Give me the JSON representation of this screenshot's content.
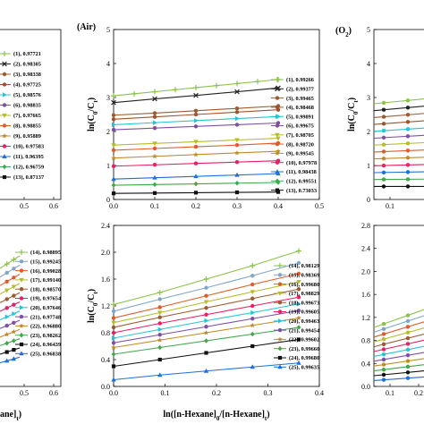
{
  "chart_data": [
    {
      "id": "air-top",
      "type": "line",
      "gas_label": "(Air)",
      "ylabel": "ln(C0/Ct)",
      "xlim": [
        0.0,
        0.5
      ],
      "ylim": [
        0,
        5
      ],
      "x_ticks": [
        "0.0",
        "0.1",
        "0.2",
        "0.3",
        "0.4",
        "0.5"
      ],
      "y_ticks": [
        "0",
        "1",
        "2",
        "3",
        "4",
        "5"
      ],
      "series": [
        {
          "name": "(1), 0.99266",
          "color": "#8bc34a",
          "marker": "plus",
          "x": [
            0,
            0.05,
            0.1,
            0.15,
            0.2,
            0.25,
            0.3,
            0.35,
            0.4
          ],
          "y": [
            3.05,
            3.11,
            3.17,
            3.23,
            3.29,
            3.35,
            3.41,
            3.47,
            3.53
          ]
        },
        {
          "name": "(2), 0.99377",
          "color": "#222222",
          "marker": "cross",
          "x": [
            0,
            0.1,
            0.2,
            0.3,
            0.4
          ],
          "y": [
            2.85,
            2.96,
            3.06,
            3.17,
            3.28
          ]
        },
        {
          "name": "(3), 0.99465",
          "color": "#9c5b2f",
          "marker": "circle",
          "x": [
            0,
            0.1,
            0.2,
            0.3,
            0.4
          ],
          "y": [
            2.48,
            2.54,
            2.61,
            2.68,
            2.75
          ]
        },
        {
          "name": "(4), 0.98468",
          "color": "#a0522d",
          "marker": "circle",
          "x": [
            0,
            0.1,
            0.2,
            0.3,
            0.4
          ],
          "y": [
            2.36,
            2.43,
            2.5,
            2.57,
            2.64
          ]
        },
        {
          "name": "(5), 0.99891",
          "color": "#27c4d8",
          "marker": "triangle-right",
          "x": [
            0,
            0.1,
            0.2,
            0.3,
            0.4
          ],
          "y": [
            2.2,
            2.26,
            2.32,
            2.38,
            2.44
          ]
        },
        {
          "name": "(6), 0.99675",
          "color": "#7e4fa6",
          "marker": "circle",
          "x": [
            0,
            0.1,
            0.2,
            0.3,
            0.4
          ],
          "y": [
            2.05,
            2.1,
            2.15,
            2.2,
            2.25
          ]
        },
        {
          "name": "(7), 0.98705",
          "color": "#b5bd2b",
          "marker": "triangle-down",
          "x": [
            0,
            0.1,
            0.2,
            0.3,
            0.4
          ],
          "y": [
            1.6,
            1.65,
            1.7,
            1.75,
            1.8
          ]
        },
        {
          "name": "(8), 0.98720",
          "color": "#e05b2b",
          "marker": "circle",
          "x": [
            0,
            0.1,
            0.2,
            0.3,
            0.4
          ],
          "y": [
            1.45,
            1.5,
            1.55,
            1.6,
            1.66
          ]
        },
        {
          "name": "(9), 0.99545",
          "color": "#c28a2b",
          "marker": "star",
          "x": [
            0,
            0.1,
            0.2,
            0.3,
            0.4
          ],
          "y": [
            1.22,
            1.27,
            1.32,
            1.37,
            1.42
          ]
        },
        {
          "name": "(10), 0.97978",
          "color": "#e91e63",
          "marker": "circle",
          "x": [
            0,
            0.1,
            0.2,
            0.3,
            0.4
          ],
          "y": [
            0.98,
            1.02,
            1.06,
            1.1,
            1.14
          ]
        },
        {
          "name": "(11), 0.98438",
          "color": "#1e6fd9",
          "marker": "triangle-up",
          "x": [
            0,
            0.1,
            0.2,
            0.3,
            0.4
          ],
          "y": [
            0.6,
            0.64,
            0.68,
            0.72,
            0.76
          ]
        },
        {
          "name": "(12), 0.99551",
          "color": "#3ea84a",
          "marker": "diamond",
          "x": [
            0,
            0.1,
            0.2,
            0.3,
            0.4
          ],
          "y": [
            0.42,
            0.44,
            0.46,
            0.48,
            0.5
          ]
        },
        {
          "name": "(13), 0.73033",
          "color": "#111111",
          "marker": "square",
          "x": [
            0,
            0.1,
            0.2,
            0.3,
            0.4
          ],
          "y": [
            0.18,
            0.19,
            0.2,
            0.21,
            0.22
          ]
        }
      ]
    },
    {
      "id": "air-bottom",
      "type": "line",
      "ylabel": "ln(C0/Ct)",
      "xlabel": "ln([n-Hexane]0/[n-Hexane]t)",
      "xlim": [
        0.0,
        0.4
      ],
      "ylim": [
        0.0,
        2.4
      ],
      "x_ticks": [
        "0.0",
        "0.1",
        "0.2",
        "0.3",
        "0.4"
      ],
      "y_ticks": [
        "0.0",
        "0.4",
        "0.8",
        "1.2",
        "1.6",
        "2.0",
        "2.4"
      ],
      "series": [
        {
          "name": "(14), 0.98129",
          "color": "#8bc34a",
          "marker": "plus",
          "x": [
            0,
            0.09,
            0.18,
            0.27,
            0.36
          ],
          "y": [
            1.22,
            1.4,
            1.6,
            1.8,
            2.02
          ]
        },
        {
          "name": "(15), 0.98369",
          "color": "#7fa6c9",
          "marker": "circle",
          "x": [
            0,
            0.09,
            0.18,
            0.27,
            0.36
          ],
          "y": [
            1.12,
            1.3,
            1.47,
            1.65,
            1.84
          ]
        },
        {
          "name": "(16), 0.99680",
          "color": "#e05b2b",
          "marker": "circle",
          "x": [
            0,
            0.09,
            0.18,
            0.27,
            0.36
          ],
          "y": [
            1.02,
            1.18,
            1.35,
            1.52,
            1.68
          ]
        },
        {
          "name": "(17), 0.98829",
          "color": "#b5bd2b",
          "marker": "triangle-down",
          "x": [
            0,
            0.09,
            0.18,
            0.27,
            0.36
          ],
          "y": [
            0.95,
            1.1,
            1.26,
            1.41,
            1.56
          ]
        },
        {
          "name": "(18), 0.99673",
          "color": "#9c5b2f",
          "marker": "circle",
          "x": [
            0,
            0.09,
            0.18,
            0.27,
            0.36
          ],
          "y": [
            0.88,
            1.03,
            1.17,
            1.31,
            1.45
          ]
        },
        {
          "name": "(19), 0.99605",
          "color": "#e91e63",
          "marker": "circle",
          "x": [
            0,
            0.09,
            0.18,
            0.27,
            0.36
          ],
          "y": [
            0.8,
            0.94,
            1.07,
            1.2,
            1.33
          ]
        },
        {
          "name": "(20), 0.99463",
          "color": "#27c4d8",
          "marker": "triangle-right",
          "x": [
            0,
            0.09,
            0.18,
            0.27,
            0.36
          ],
          "y": [
            0.72,
            0.85,
            0.98,
            1.1,
            1.23
          ]
        },
        {
          "name": "(21), 0.99454",
          "color": "#7e4fa6",
          "marker": "circle",
          "x": [
            0,
            0.09,
            0.18,
            0.27,
            0.36
          ],
          "y": [
            0.65,
            0.77,
            0.89,
            1.01,
            1.13
          ]
        },
        {
          "name": "(22), 0.99602",
          "color": "#c28a2b",
          "marker": "star",
          "x": [
            0,
            0.09,
            0.18,
            0.27,
            0.36
          ],
          "y": [
            0.58,
            0.69,
            0.8,
            0.91,
            1.02
          ]
        },
        {
          "name": "(23), 0.99660",
          "color": "#3ea84a",
          "marker": "diamond",
          "x": [
            0,
            0.09,
            0.18,
            0.27,
            0.36
          ],
          "y": [
            0.48,
            0.58,
            0.68,
            0.78,
            0.88
          ]
        },
        {
          "name": "(24), 0.99680",
          "color": "#111111",
          "marker": "square",
          "x": [
            0,
            0.09,
            0.18,
            0.27,
            0.36
          ],
          "y": [
            0.3,
            0.4,
            0.5,
            0.6,
            0.7
          ]
        },
        {
          "name": "(25), 0.99635",
          "color": "#1e6fd9",
          "marker": "triangle-up",
          "x": [
            0,
            0.09,
            0.18,
            0.27,
            0.36
          ],
          "y": [
            0.1,
            0.17,
            0.23,
            0.29,
            0.35
          ]
        }
      ]
    },
    {
      "id": "left-top-partial",
      "type": "line",
      "partial": true,
      "x_ticks": [
        "0.5",
        "0.6"
      ],
      "series": [
        {
          "name": "(1), 0.97721",
          "color": "#8bc34a",
          "marker": "plus"
        },
        {
          "name": "(2), 0.98305",
          "color": "#222222",
          "marker": "cross"
        },
        {
          "name": "(3), 0.98338",
          "color": "#9c5b2f",
          "marker": "circle"
        },
        {
          "name": "(4), 0.97725",
          "color": "#a0522d",
          "marker": "circle"
        },
        {
          "name": "(5), 0.98576",
          "color": "#27c4d8",
          "marker": "triangle-right"
        },
        {
          "name": "(6), 0.98835",
          "color": "#7e4fa6",
          "marker": "circle"
        },
        {
          "name": "(7), 0.97665",
          "color": "#b5bd2b",
          "marker": "triangle-down"
        },
        {
          "name": "(8), 0.98855",
          "color": "#e05b2b",
          "marker": "circle"
        },
        {
          "name": "(9), 0.95889",
          "color": "#c28a2b",
          "marker": "star"
        },
        {
          "name": "(10), 0.97583",
          "color": "#e91e63",
          "marker": "circle"
        },
        {
          "name": "(11), 0.96395",
          "color": "#1e6fd9",
          "marker": "triangle-up"
        },
        {
          "name": "(12), 0.96759",
          "color": "#3ea84a",
          "marker": "diamond"
        },
        {
          "name": "(13), 0.87137",
          "color": "#111111",
          "marker": "square"
        }
      ]
    },
    {
      "id": "left-bottom-partial",
      "type": "line",
      "partial": true,
      "x_ticks": [
        "0.5",
        "0.6"
      ],
      "xlabel_fragment": "ane]t)",
      "series": [
        {
          "name": "(14), 0.98895",
          "color": "#8bc34a",
          "marker": "plus"
        },
        {
          "name": "(15), 0.99245",
          "color": "#7fa6c9",
          "marker": "circle"
        },
        {
          "name": "(16), 0.99028",
          "color": "#e05b2b",
          "marker": "circle"
        },
        {
          "name": "(17), 0.99140",
          "color": "#b5bd2b",
          "marker": "triangle-down"
        },
        {
          "name": "(18), 0.98570",
          "color": "#9c5b2f",
          "marker": "circle"
        },
        {
          "name": "(19), 0.97654",
          "color": "#e91e63",
          "marker": "circle"
        },
        {
          "name": "(20), 0.97646",
          "color": "#27c4d8",
          "marker": "triangle-right"
        },
        {
          "name": "(21), 0.97748",
          "color": "#7e4fa6",
          "marker": "circle"
        },
        {
          "name": "(22), 0.96880",
          "color": "#c28a2b",
          "marker": "star"
        },
        {
          "name": "(23), 0.98262",
          "color": "#3ea84a",
          "marker": "diamond"
        },
        {
          "name": "(24), 0.96439",
          "color": "#111111",
          "marker": "square"
        },
        {
          "name": "(25), 0.96838",
          "color": "#1e6fd9",
          "marker": "triangle-up"
        }
      ]
    },
    {
      "id": "o2-top-partial",
      "type": "line",
      "partial": true,
      "gas_label": "(O2)",
      "ylabel": "ln(C0/Ct)",
      "ylim": [
        0,
        5
      ],
      "y_ticks": [
        "0",
        "1",
        "2",
        "3",
        "4",
        "5"
      ],
      "x_ticks": [
        "0.1"
      ],
      "series_colors": [
        "#8bc34a",
        "#222222",
        "#9c5b2f",
        "#a0522d",
        "#27c4d8",
        "#7e4fa6",
        "#b5bd2b",
        "#e05b2b",
        "#c28a2b",
        "#e91e63",
        "#1e6fd9",
        "#3ea84a",
        "#111111"
      ]
    },
    {
      "id": "o2-bottom-partial",
      "type": "line",
      "partial": true,
      "ylim": [
        0.0,
        2.8
      ],
      "y_ticks": [
        "0.0",
        "0.4",
        "0.8",
        "1.2",
        "1.6",
        "2.0",
        "2.4",
        "2.8"
      ],
      "x_ticks": [
        "0.1",
        "0.2"
      ],
      "series_colors": [
        "#8bc34a",
        "#7fa6c9",
        "#e05b2b",
        "#b5bd2b",
        "#9c5b2f",
        "#e91e63",
        "#27c4d8",
        "#7e4fa6",
        "#c28a2b",
        "#3ea84a",
        "#111111",
        "#1e6fd9"
      ]
    }
  ]
}
